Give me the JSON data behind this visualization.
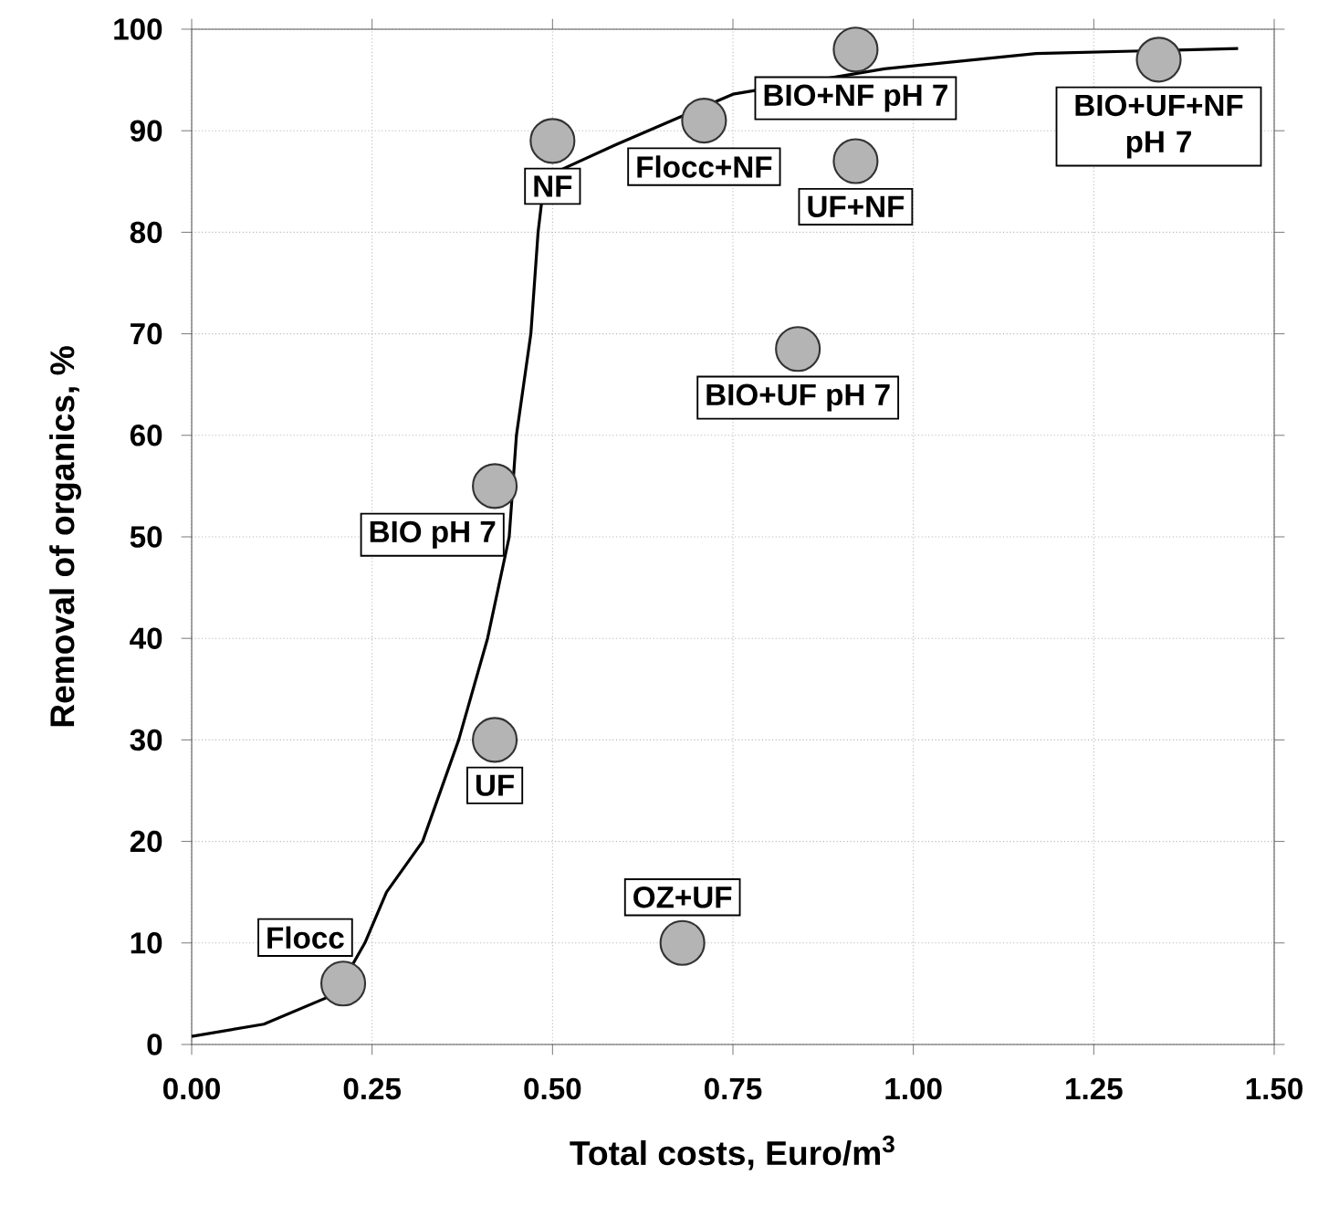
{
  "chart_data": {
    "type": "scatter",
    "xlabel": "Total costs, Euro/m$^{3}$",
    "ylabel": "Removal of organics, %",
    "xlim": [
      0,
      1.5
    ],
    "ylim": [
      0,
      100
    ],
    "xticks": [
      {
        "value": 0,
        "label": "0.00"
      },
      {
        "value": 0.25,
        "label": "0.25"
      },
      {
        "value": 0.5,
        "label": "0.50"
      },
      {
        "value": 0.75,
        "label": "0.75"
      },
      {
        "value": 1.0,
        "label": "1.00"
      },
      {
        "value": 1.25,
        "label": "1.25"
      },
      {
        "value": 1.5,
        "label": "1.50"
      }
    ],
    "yticks": [
      0,
      10,
      20,
      30,
      40,
      50,
      60,
      70,
      80,
      90,
      100
    ],
    "grid": true,
    "series": [
      {
        "marker": "circle",
        "color": "#b4b4b4",
        "x": [
          0.21,
          0.42,
          0.68,
          0.42,
          0.5,
          0.71,
          0.92,
          0.92,
          0.84,
          1.34
        ],
        "values": [
          6,
          30,
          10,
          55,
          89,
          91,
          98,
          87,
          68.5,
          97
        ]
      },
      {
        "type": "line",
        "marker": "none",
        "line_style": "solid",
        "color": "#000000",
        "x": [
          0,
          0.1,
          0.2,
          0.24,
          0.27,
          0.32,
          0.37,
          0.41,
          0.44,
          0.45,
          0.47,
          0.48,
          0.485,
          0.507,
          0.587,
          0.75,
          0.96,
          1.17,
          1.45
        ],
        "values": [
          0.8,
          2,
          5,
          10,
          15,
          20,
          30,
          40,
          50,
          60,
          70,
          80,
          83,
          86,
          88.6,
          93.6,
          96.1,
          97.6,
          98.1
        ]
      }
    ],
    "annotations": [
      {
        "text": "Flocc",
        "x": 0.21,
        "y": 6
      },
      {
        "text": "UF",
        "x": 0.42,
        "y": 30
      },
      {
        "text": "OZ+UF",
        "x": 0.68,
        "y": 10
      },
      {
        "text": "BIO pH 7",
        "x": 0.42,
        "y": 55
      },
      {
        "text": "NF",
        "x": 0.5,
        "y": 89
      },
      {
        "text": "Flocc+NF",
        "x": 0.71,
        "y": 91
      },
      {
        "text": "BIO+NF pH 7",
        "x": 0.92,
        "y": 98
      },
      {
        "text": "UF+NF",
        "x": 0.92,
        "y": 87
      },
      {
        "text": "BIO+UF pH 7",
        "x": 0.84,
        "y": 68.5
      },
      {
        "text": "BIO+UF+NF pH 7",
        "x": 1.34,
        "y": 97
      }
    ]
  }
}
